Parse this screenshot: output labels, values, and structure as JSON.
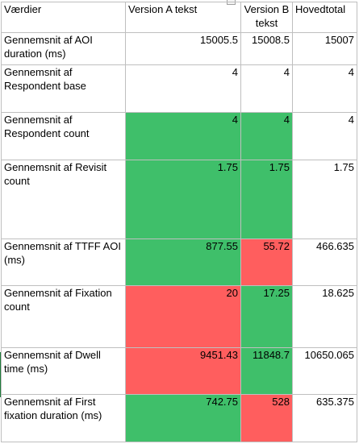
{
  "header": {
    "row_label": "Værdier",
    "col_a": "Version A tekst",
    "col_b": "Version B tekst",
    "col_total": "Hovedtotal"
  },
  "rows": [
    {
      "label": "Gennemsnit af AOI duration (ms)",
      "a": "15005.5",
      "b": "15008.5",
      "total": "15007",
      "a_fill": "none",
      "b_fill": "none"
    },
    {
      "label": "Gennemsnit af Respondent base",
      "a": "4",
      "b": "4",
      "total": "4",
      "a_fill": "none",
      "b_fill": "none"
    },
    {
      "label": "Gennemsnit af Respondent count",
      "a": "4",
      "b": "4",
      "total": "4",
      "a_fill": "green",
      "b_fill": "green"
    },
    {
      "label": "Gennemsnit af Revisit count",
      "a": "1.75",
      "b": "1.75",
      "total": "1.75",
      "a_fill": "green",
      "b_fill": "green"
    },
    {
      "label": "Gennemsnit af TTFF AOI (ms)",
      "a": "877.55",
      "b": "55.72",
      "total": "466.635",
      "a_fill": "green",
      "b_fill": "red"
    },
    {
      "label": "Gennemsnit af Fixation count",
      "a": "20",
      "b": "17.25",
      "total": "18.625",
      "a_fill": "red",
      "b_fill": "green"
    },
    {
      "label": "Gennemsnit af Dwell time (ms)",
      "a": "9451.43",
      "b": "11848.7",
      "total": "10650.065",
      "a_fill": "red",
      "b_fill": "green"
    },
    {
      "label": "Gennemsnit af First fixation duration (ms)",
      "a": "742.75",
      "b": "528",
      "total": "635.375",
      "a_fill": "green",
      "b_fill": "red"
    }
  ],
  "colors": {
    "green": "#3fbf6a",
    "red": "#ff5e5e",
    "grid": "#bfbfbf"
  }
}
